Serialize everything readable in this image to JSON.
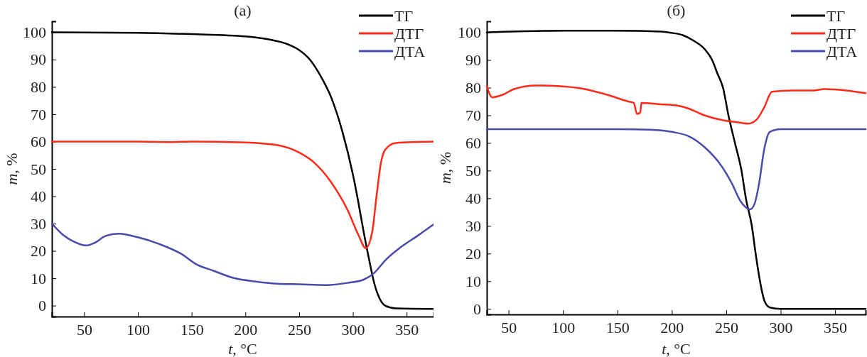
{
  "chart_data": [
    {
      "type": "line",
      "title": "(a)",
      "xlabel": "t, °C",
      "ylabel": "m, %",
      "xlim": [
        20,
        375
      ],
      "ylim": [
        -4,
        104
      ],
      "xticks": [
        50,
        100,
        150,
        200,
        250,
        300,
        350
      ],
      "yticks": [
        0,
        10,
        20,
        30,
        40,
        50,
        60,
        70,
        80,
        90,
        100
      ],
      "legend": "top right",
      "grid": false,
      "marker": "none",
      "line_style": "solid",
      "series": [
        {
          "name": "ТГ",
          "color": "#000000",
          "x": [
            20,
            100,
            150,
            200,
            220,
            240,
            250,
            260,
            270,
            280,
            290,
            300,
            305,
            310,
            315,
            320,
            325,
            330,
            340,
            375
          ],
          "values": [
            100,
            99.8,
            99.3,
            98.5,
            97.5,
            95.5,
            93.5,
            90,
            84,
            76,
            64,
            48,
            38,
            27,
            17,
            8,
            2.5,
            0,
            -1,
            -1.2
          ]
        },
        {
          "name": "ДТГ",
          "color": "#ff2a1a",
          "x": [
            20,
            100,
            130,
            150,
            200,
            230,
            250,
            265,
            280,
            295,
            305,
            312,
            318,
            322,
            326,
            330,
            340,
            375
          ],
          "values": [
            60,
            60,
            59.8,
            60,
            59.7,
            58.7,
            56,
            52,
            45,
            35,
            26,
            21,
            27,
            40,
            52,
            57,
            59.5,
            60
          ]
        },
        {
          "name": "ДТА",
          "color": "#4a4aaa",
          "x": [
            20,
            30,
            40,
            52,
            60,
            70,
            82,
            100,
            120,
            140,
            155,
            170,
            190,
            210,
            230,
            250,
            275,
            295,
            310,
            320,
            330,
            345,
            360,
            375
          ],
          "values": [
            30,
            26,
            23.5,
            22,
            23,
            25.5,
            26.3,
            25,
            22.5,
            19,
            15,
            12.8,
            10,
            8.8,
            8,
            7.8,
            7.5,
            8.3,
            9.5,
            12,
            16.5,
            21.5,
            25.5,
            29.7
          ]
        }
      ]
    },
    {
      "type": "line",
      "title": "(б)",
      "xlabel": "t, °C",
      "ylabel": "m, %",
      "xlim": [
        30,
        378
      ],
      "ylim": [
        -2,
        104
      ],
      "xticks": [
        50,
        100,
        150,
        200,
        250,
        300,
        350
      ],
      "yticks": [
        0,
        10,
        20,
        30,
        40,
        50,
        60,
        70,
        80,
        90,
        100
      ],
      "legend": "top right",
      "grid": false,
      "marker": "none",
      "line_style": "solid",
      "series": [
        {
          "name": "ТГ",
          "color": "#000000",
          "x": [
            30,
            100,
            150,
            190,
            200,
            210,
            220,
            230,
            237,
            242,
            247,
            252,
            258,
            264,
            268,
            273.5,
            277,
            281,
            285,
            290,
            300,
            378
          ],
          "values": [
            100,
            100.6,
            100.6,
            100.3,
            99.8,
            99,
            97,
            94,
            90,
            85,
            80,
            70,
            60,
            50,
            40,
            30,
            20,
            10,
            3,
            0.5,
            0,
            0
          ]
        },
        {
          "name": "ДТГ",
          "color": "#ff2a1a",
          "x": [
            30,
            35,
            45,
            55,
            75,
            95,
            120,
            140,
            160,
            165,
            168,
            171,
            172,
            190,
            205,
            215,
            230,
            250,
            260,
            270,
            278,
            285,
            292,
            310,
            330,
            340,
            360,
            378
          ],
          "values": [
            80.5,
            76.5,
            77.5,
            79.5,
            80.8,
            80.6,
            79.5,
            77.5,
            75,
            74.5,
            70.5,
            71,
            74.5,
            74,
            73.5,
            72.5,
            70,
            68,
            67.5,
            67,
            68.5,
            73,
            78.5,
            79,
            79,
            79.5,
            79,
            78
          ]
        },
        {
          "name": "ДТА",
          "color": "#4a4aaa",
          "x": [
            30,
            100,
            150,
            180,
            200,
            215,
            230,
            245,
            255,
            263,
            272,
            276,
            280,
            285,
            290,
            300,
            378
          ],
          "values": [
            65,
            65,
            65,
            64.8,
            64,
            62.5,
            58.5,
            52,
            45.5,
            39,
            36,
            38,
            45,
            58,
            64,
            65,
            65
          ]
        }
      ]
    }
  ]
}
